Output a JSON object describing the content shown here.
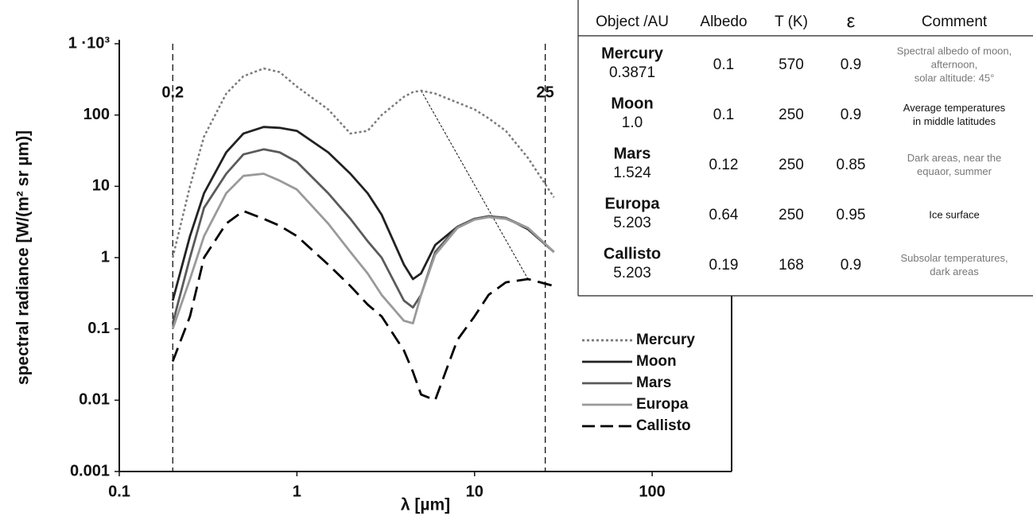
{
  "chart_data": {
    "type": "line",
    "y_label": "spectral radiance [W/(m² sr µm)]",
    "x_label": "λ [µm]",
    "log_x": true,
    "log_y": true,
    "xlim": [
      0.1,
      280
    ],
    "xticks": [
      0.1,
      1,
      10,
      100
    ],
    "ylim": [
      0.001,
      1000
    ],
    "yticks": [
      0.001,
      0.01,
      0.1,
      1,
      10,
      100,
      {
        "value": 1000,
        "label": "1 ·10³"
      }
    ],
    "vlines": [
      {
        "value": 0.2,
        "label": "0.2"
      },
      {
        "value": 25,
        "label": "25"
      }
    ],
    "x": [
      0.2,
      0.25,
      0.3,
      0.4,
      0.5,
      0.65,
      0.8,
      1,
      1.5,
      2,
      2.5,
      3,
      4,
      4.5,
      5,
      6,
      8,
      10,
      12,
      15,
      20,
      28
    ],
    "series": [
      {
        "name": "Mercury",
        "color": "#7a7a7a",
        "style": "dotted",
        "values": [
          1,
          10,
          50,
          200,
          350,
          450,
          400,
          250,
          120,
          55,
          60,
          100,
          180,
          210,
          220,
          200,
          150,
          120,
          90,
          60,
          25,
          7
        ]
      },
      {
        "name": "Moon",
        "color": "#222222",
        "style": "solid",
        "values": [
          0.25,
          2,
          8,
          30,
          55,
          68,
          66,
          60,
          30,
          15,
          8,
          4,
          0.8,
          0.5,
          0.6,
          1.5,
          2.7,
          3.5,
          3.8,
          3.6,
          2.5,
          1.2
        ]
      },
      {
        "name": "Mars",
        "color": "#5a5a5a",
        "style": "solid",
        "values": [
          0.12,
          1,
          5,
          15,
          28,
          33,
          30,
          22,
          8,
          3.5,
          1.7,
          1,
          0.25,
          0.2,
          0.3,
          1.2,
          2.7,
          3.5,
          3.8,
          3.6,
          2.6,
          1.2
        ]
      },
      {
        "name": "Europa",
        "color": "#9a9a9a",
        "style": "solid",
        "values": [
          0.1,
          0.5,
          2,
          8,
          14,
          15,
          12,
          9,
          3,
          1.2,
          0.6,
          0.3,
          0.13,
          0.12,
          0.3,
          1.1,
          2.6,
          3.4,
          3.7,
          3.5,
          2.6,
          1.2
        ]
      },
      {
        "name": "Callisto",
        "color": "#000000",
        "style": "dashed",
        "values": [
          0.035,
          0.15,
          1,
          3,
          4.5,
          3.5,
          2.8,
          2,
          0.8,
          0.4,
          0.22,
          0.15,
          0.05,
          0.025,
          0.012,
          0.01,
          0.07,
          0.15,
          0.3,
          0.45,
          0.5,
          0.4
        ]
      }
    ]
  },
  "table": {
    "columns": [
      "Object /AU",
      "Albedo",
      "T (K)",
      "ε",
      "Comment"
    ],
    "rows": [
      {
        "name": "Mercury",
        "au": "0.3871",
        "albedo": "0.1",
        "t": "570",
        "eps": "0.9",
        "comment": [
          "Spectral albedo of moon,",
          "afternoon,",
          "solar altitude: 45°"
        ],
        "comment_color": "#777777"
      },
      {
        "name": "Moon",
        "au": "1.0",
        "albedo": "0.1",
        "t": "250",
        "eps": "0.9",
        "comment": [
          "Average temperatures",
          "in middle latitudes"
        ],
        "comment_color": "#111111"
      },
      {
        "name": "Mars",
        "au": "1.524",
        "albedo": "0.12",
        "t": "250",
        "eps": "0.85",
        "comment": [
          "Dark areas, near the",
          "equaor, summer"
        ],
        "comment_color": "#777777"
      },
      {
        "name": "Europa",
        "au": "5.203",
        "albedo": "0.64",
        "t": "250",
        "eps": "0.95",
        "comment": [
          "Ice surface"
        ],
        "comment_color": "#111111"
      },
      {
        "name": "Callisto",
        "au": "5.203",
        "albedo": "0.19",
        "t": "168",
        "eps": "0.9",
        "comment": [
          "Subsolar temperatures,",
          "dark areas"
        ],
        "comment_color": "#777777"
      }
    ]
  }
}
